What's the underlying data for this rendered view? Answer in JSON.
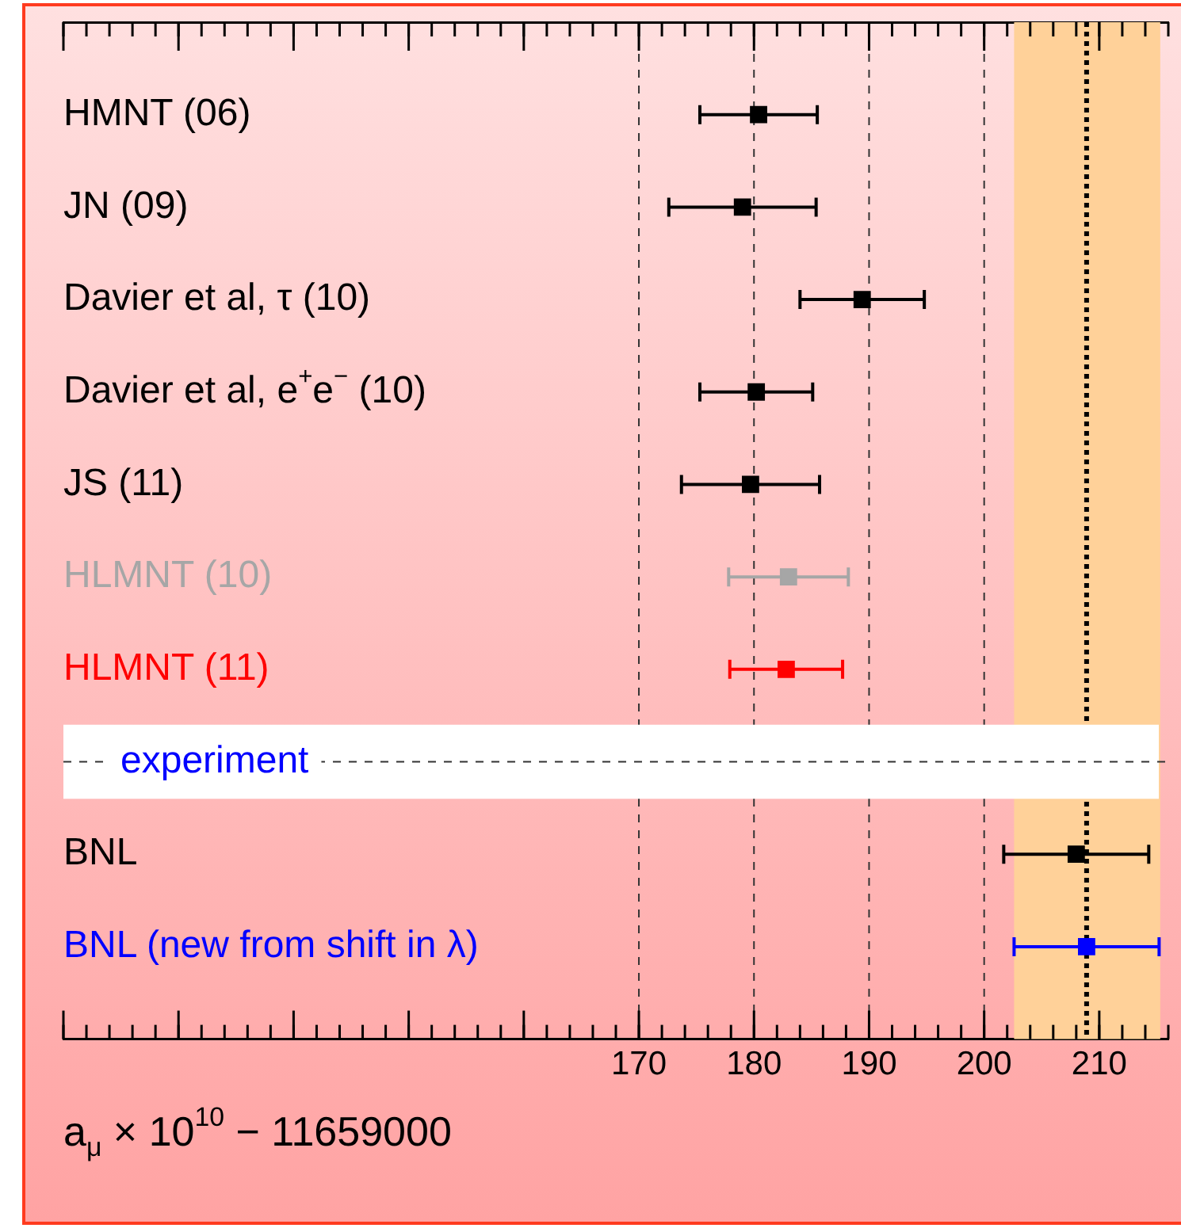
{
  "chart_data": {
    "type": "scatter",
    "orientation": "horizontal",
    "marker": "square",
    "legend": false,
    "grid": "x",
    "categories": [
      "HMNT (06)",
      "JN (09)",
      "Davier et al, τ (10)",
      "Davier et al, e$^{+}$e$^{−}$ (10)",
      "JS (11)",
      "HLMNT (10)",
      "HLMNT (11)",
      "experiment",
      "BNL",
      "BNL (new from shift in λ)"
    ],
    "values": [
      180.4,
      179.0,
      189.4,
      180.2,
      179.7,
      183.0,
      182.8,
      null,
      208.0,
      208.9
    ],
    "errors": [
      5.1,
      6.4,
      5.4,
      4.9,
      6.0,
      5.2,
      4.9,
      null,
      6.3,
      6.3
    ],
    "colors": [
      "#000000",
      "#000000",
      "#000000",
      "#000000",
      "#000000",
      "#a6a6a6",
      "#ff0000",
      "#0000ff",
      "#000000",
      "#0000ff"
    ],
    "xlabel": "a$_{μ}$ × 10$^{10}$ − 11659000",
    "xlim": [
      120,
      216
    ],
    "xticks": [
      {
        "value": 120,
        "label": null
      },
      {
        "value": 130,
        "label": null
      },
      {
        "value": 140,
        "label": null
      },
      {
        "value": 150,
        "label": null
      },
      {
        "value": 160,
        "label": null
      },
      170,
      180,
      190,
      200,
      210
    ],
    "ref_lines": [
      {
        "axis": "x",
        "value": 208.9,
        "color": "#000000",
        "line_style": "dotted"
      },
      {
        "axis": "y",
        "value": "experiment",
        "color": "#333333",
        "line_style": "dashed"
      }
    ],
    "bands": [
      {
        "axis": "x",
        "from": 202.6,
        "to": 215.3,
        "color": "#ffd199"
      },
      {
        "axis": "y",
        "from": "experiment",
        "to": "experiment",
        "color": "#ffffff"
      }
    ]
  }
}
